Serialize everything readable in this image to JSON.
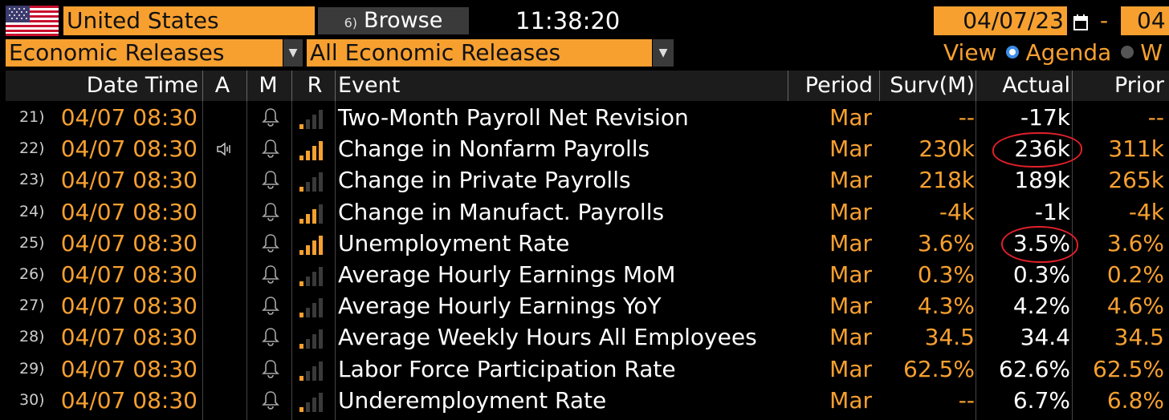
{
  "topbar": {
    "flag_icon": "us-flag-icon",
    "country": "United States",
    "browse_number": "6)",
    "browse_label": "Browse",
    "clock": "11:38:20",
    "date_from": "04/07/23",
    "date_separator": "-",
    "date_to": "04"
  },
  "filters": {
    "category": "Economic Releases",
    "subcategory": "All Economic Releases",
    "view_label": "View",
    "view_options": [
      {
        "label": "Agenda",
        "selected": true
      },
      {
        "label": "W",
        "selected": false
      }
    ]
  },
  "table": {
    "columns": [
      "Date Time",
      "A",
      "M",
      "R",
      "Event",
      "Period",
      "Surv(M)",
      "Actual",
      "Prior"
    ],
    "rows": [
      {
        "num": "21)",
        "datetime": "04/07 08:30",
        "audio": "",
        "relevance": 1,
        "event": "Two-Month Payroll Net Revision",
        "period": "Mar",
        "survey": "--",
        "actual": "-17k",
        "prior": "--"
      },
      {
        "num": "22)",
        "datetime": "04/07 08:30",
        "audio": "speaker-icon",
        "relevance": 4,
        "event": "Change in Nonfarm Payrolls",
        "period": "Mar",
        "survey": "230k",
        "actual": "236k",
        "prior": "311k"
      },
      {
        "num": "23)",
        "datetime": "04/07 08:30",
        "audio": "",
        "relevance": 1,
        "event": "Change in Private Payrolls",
        "period": "Mar",
        "survey": "218k",
        "actual": "189k",
        "prior": "265k"
      },
      {
        "num": "24)",
        "datetime": "04/07 08:30",
        "audio": "",
        "relevance": 3,
        "event": "Change in Manufact. Payrolls",
        "period": "Mar",
        "survey": "-4k",
        "actual": "-1k",
        "prior": "-4k"
      },
      {
        "num": "25)",
        "datetime": "04/07 08:30",
        "audio": "",
        "relevance": 4,
        "event": "Unemployment Rate",
        "period": "Mar",
        "survey": "3.6%",
        "actual": "3.5%",
        "prior": "3.6%"
      },
      {
        "num": "26)",
        "datetime": "04/07 08:30",
        "audio": "",
        "relevance": 1,
        "event": "Average Hourly Earnings MoM",
        "period": "Mar",
        "survey": "0.3%",
        "actual": "0.3%",
        "prior": "0.2%"
      },
      {
        "num": "27)",
        "datetime": "04/07 08:30",
        "audio": "",
        "relevance": 1,
        "event": "Average Hourly Earnings YoY",
        "period": "Mar",
        "survey": "4.3%",
        "actual": "4.2%",
        "prior": "4.6%"
      },
      {
        "num": "28)",
        "datetime": "04/07 08:30",
        "audio": "",
        "relevance": 1,
        "event": "Average Weekly Hours All Employees",
        "period": "Mar",
        "survey": "34.5",
        "actual": "34.4",
        "prior": "34.5"
      },
      {
        "num": "29)",
        "datetime": "04/07 08:30",
        "audio": "",
        "relevance": 1,
        "event": "Labor Force Participation Rate",
        "period": "Mar",
        "survey": "62.5%",
        "actual": "62.6%",
        "prior": "62.5%"
      },
      {
        "num": "30)",
        "datetime": "04/07 08:30",
        "audio": "",
        "relevance": 1,
        "event": "Underemployment Rate",
        "period": "Mar",
        "survey": "--",
        "actual": "6.7%",
        "prior": "6.8%"
      }
    ]
  },
  "colors": {
    "accent": "#f7a030",
    "background": "#000000",
    "annotation": "#e0202a",
    "radio_selected": "#3b8ee8"
  }
}
